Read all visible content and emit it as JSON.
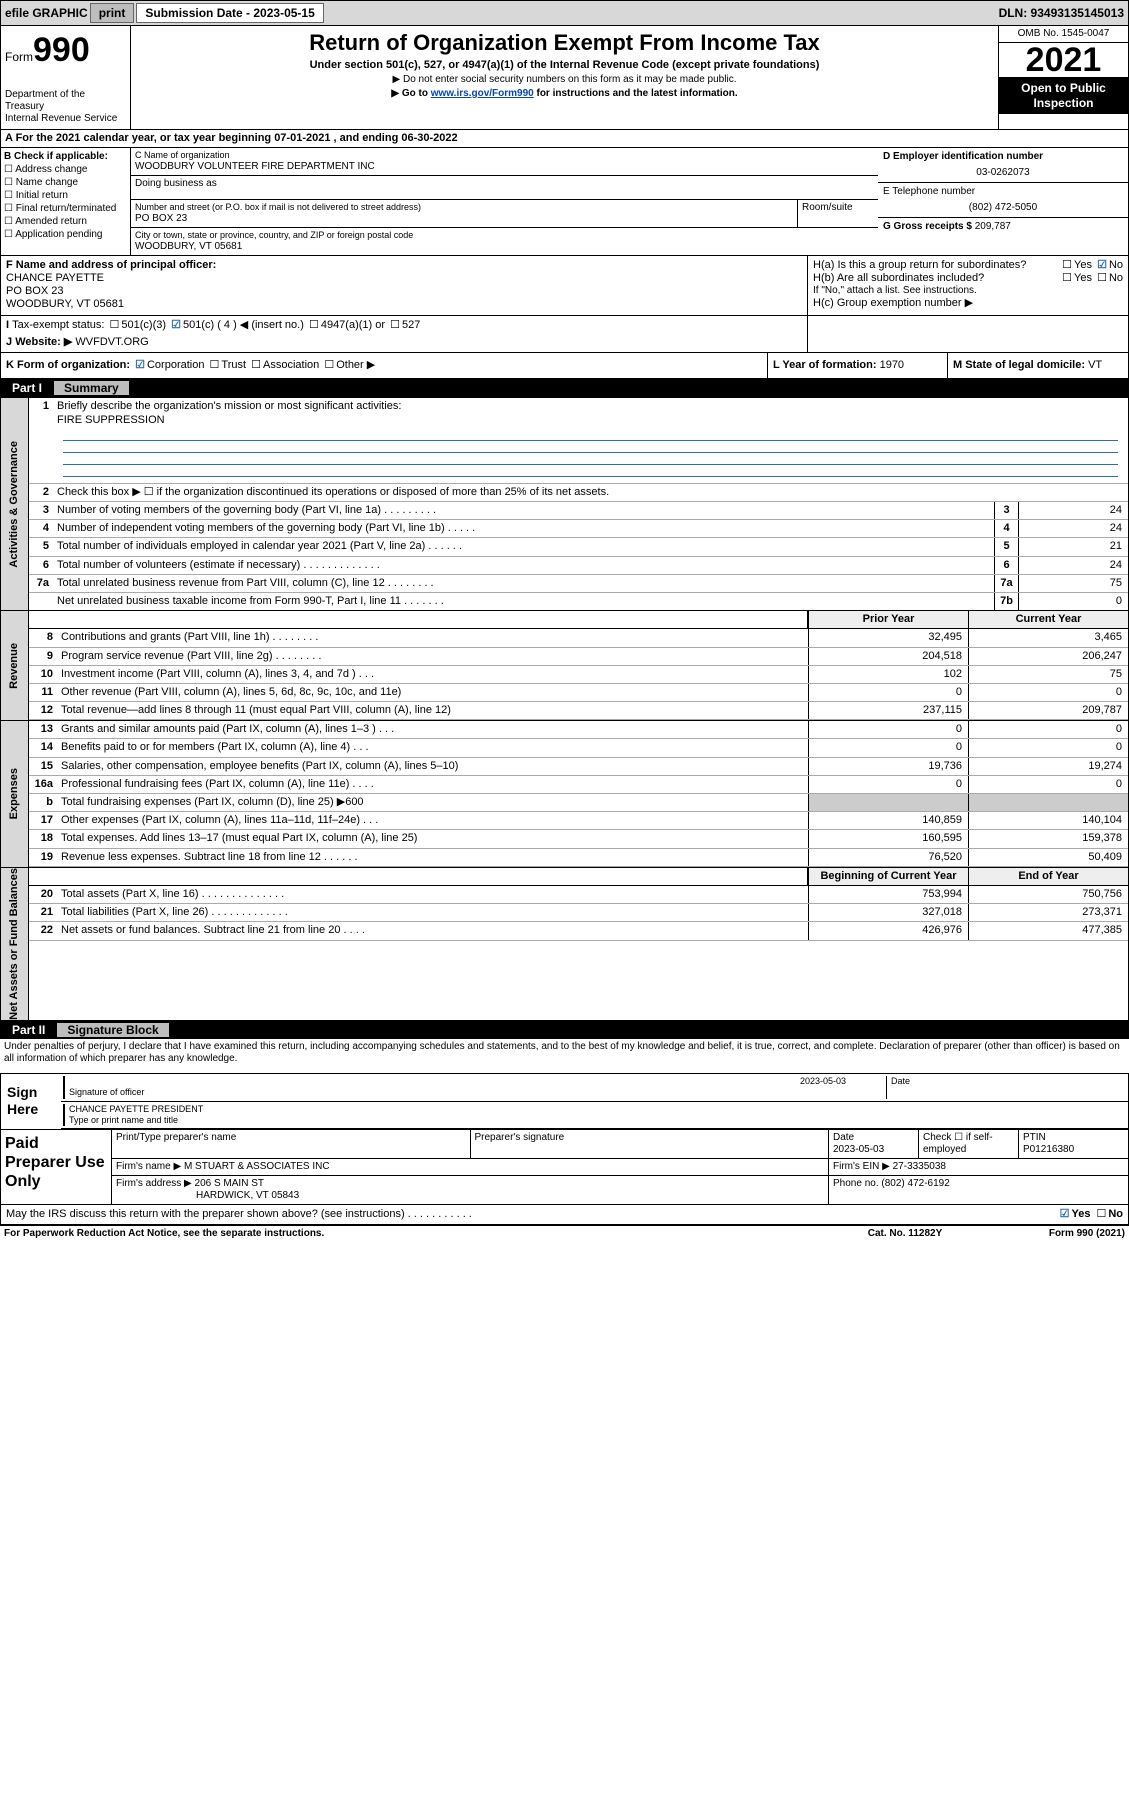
{
  "topbar": {
    "efile": "efile GRAPHIC",
    "print": "print",
    "sub_label": "Submission Date - 2023-05-15",
    "dln": "DLN: 93493135145013"
  },
  "header": {
    "form": "Form",
    "num": "990",
    "dept": "Department of the Treasury",
    "irs": "Internal Revenue Service",
    "title": "Return of Organization Exempt From Income Tax",
    "sub": "Under section 501(c), 527, or 4947(a)(1) of the Internal Revenue Code (except private foundations)",
    "l1": "▶ Do not enter social security numbers on this form as it may be made public.",
    "l2a": "▶ Go to ",
    "l2link": "www.irs.gov/Form990",
    "l2b": " for instructions and the latest information.",
    "omb": "OMB No. 1545-0047",
    "year": "2021",
    "otp": "Open to Public Inspection"
  },
  "period": {
    "text": "A For the 2021 calendar year, or tax year beginning 07-01-2021   , and ending 06-30-2022"
  },
  "entity": {
    "B_label": "B Check if applicable:",
    "B_opts": [
      "Address change",
      "Name change",
      "Initial return",
      "Final return/terminated",
      "Amended return",
      "Application pending"
    ],
    "C_label": "C Name of organization",
    "C_name": "WOODBURY VOLUNTEER FIRE DEPARTMENT INC",
    "dba": "Doing business as",
    "street_label": "Number and street (or P.O. box if mail is not delivered to street address)",
    "street": "PO BOX 23",
    "suite": "Room/suite",
    "city_label": "City or town, state or province, country, and ZIP or foreign postal code",
    "city": "WOODBURY, VT  05681",
    "D_label": "D Employer identification number",
    "D_val": "03-0262073",
    "E_label": "E Telephone number",
    "E_val": "(802) 472-5050",
    "G_label": "G Gross receipts $",
    "G_val": "209,787",
    "F_label": "F  Name and address of principal officer:",
    "F_name": "CHANCE PAYETTE",
    "F_addr1": "PO BOX 23",
    "F_addr2": "WOODBURY, VT  05681",
    "Ha": "H(a)  Is this a group return for subordinates?",
    "Hb": "H(b)  Are all subordinates included?",
    "Hnote": "If \"No,\" attach a list. See instructions.",
    "Hc": "H(c)  Group exemption number ▶",
    "I_label": "Tax-exempt status:",
    "I_501c3": "501(c)(3)",
    "I_501c": "501(c) ( 4 ) ◀ (insert no.)",
    "I_4947": "4947(a)(1) or",
    "I_527": "527",
    "J_label": "Website: ▶",
    "J_val": "WVFDVT.ORG",
    "K_label": "K Form of organization:",
    "K_corp": "Corporation",
    "K_trust": "Trust",
    "K_assoc": "Association",
    "K_other": "Other ▶",
    "L_label": "L Year of formation:",
    "L_val": "1970",
    "M_label": "M State of legal domicile:",
    "M_val": "VT"
  },
  "part1": {
    "hdr": "Part I",
    "title": "Summary",
    "q1": "Briefly describe the organization's mission or most significant activities:",
    "q1v": "FIRE SUPPRESSION",
    "q2": "Check this box ▶ ☐  if the organization discontinued its operations or disposed of more than 25% of its net assets.",
    "rows_gov": [
      {
        "n": "3",
        "d": "Number of voting members of the governing body (Part VI, line 1a)   .   .   .   .   .   .   .   .   .",
        "b": "3",
        "v": "24"
      },
      {
        "n": "4",
        "d": "Number of independent voting members of the governing body (Part VI, line 1b)   .   .   .   .   .",
        "b": "4",
        "v": "24"
      },
      {
        "n": "5",
        "d": "Total number of individuals employed in calendar year 2021 (Part V, line 2a)   .   .   .   .   .   .",
        "b": "5",
        "v": "21"
      },
      {
        "n": "6",
        "d": "Total number of volunteers (estimate if necessary)   .   .   .   .   .   .   .   .   .   .   .   .   .",
        "b": "6",
        "v": "24"
      },
      {
        "n": "7a",
        "d": "Total unrelated business revenue from Part VIII, column (C), line 12   .   .   .   .   .   .   .   .",
        "b": "7a",
        "v": "75"
      },
      {
        "n": "",
        "d": "Net unrelated business taxable income from Form 990-T, Part I, line 11   .   .   .   .   .   .   .",
        "b": "7b",
        "v": "0"
      }
    ],
    "col_prior": "Prior Year",
    "col_curr": "Current Year",
    "col_beg": "Beginning of Current Year",
    "col_end": "End of Year",
    "rev": [
      {
        "n": "8",
        "d": "Contributions and grants (Part VIII, line 1h)   .   .   .   .   .   .   .   .",
        "p": "32,495",
        "c": "3,465"
      },
      {
        "n": "9",
        "d": "Program service revenue (Part VIII, line 2g)   .   .   .   .   .   .   .   .",
        "p": "204,518",
        "c": "206,247"
      },
      {
        "n": "10",
        "d": "Investment income (Part VIII, column (A), lines 3, 4, and 7d )   .   .   .",
        "p": "102",
        "c": "75"
      },
      {
        "n": "11",
        "d": "Other revenue (Part VIII, column (A), lines 5, 6d, 8c, 9c, 10c, and 11e)",
        "p": "0",
        "c": "0"
      },
      {
        "n": "12",
        "d": "Total revenue—add lines 8 through 11 (must equal Part VIII, column (A), line 12)",
        "p": "237,115",
        "c": "209,787"
      }
    ],
    "exp": [
      {
        "n": "13",
        "d": "Grants and similar amounts paid (Part IX, column (A), lines 1–3 )   .   .   .",
        "p": "0",
        "c": "0"
      },
      {
        "n": "14",
        "d": "Benefits paid to or for members (Part IX, column (A), line 4)   .   .   .",
        "p": "0",
        "c": "0"
      },
      {
        "n": "15",
        "d": "Salaries, other compensation, employee benefits (Part IX, column (A), lines 5–10)",
        "p": "19,736",
        "c": "19,274"
      },
      {
        "n": "16a",
        "d": "Professional fundraising fees (Part IX, column (A), line 11e)   .   .   .   .",
        "p": "0",
        "c": "0"
      },
      {
        "n": "b",
        "d": "Total fundraising expenses (Part IX, column (D), line 25) ▶600",
        "p": "",
        "c": "",
        "shade": true
      },
      {
        "n": "17",
        "d": "Other expenses (Part IX, column (A), lines 11a–11d, 11f–24e)   .   .   .",
        "p": "140,859",
        "c": "140,104"
      },
      {
        "n": "18",
        "d": "Total expenses. Add lines 13–17 (must equal Part IX, column (A), line 25)",
        "p": "160,595",
        "c": "159,378"
      },
      {
        "n": "19",
        "d": "Revenue less expenses. Subtract line 18 from line 12   .   .   .   .   .   .",
        "p": "76,520",
        "c": "50,409"
      }
    ],
    "net": [
      {
        "n": "20",
        "d": "Total assets (Part X, line 16)   .   .   .   .   .   .   .   .   .   .   .   .   .   .",
        "p": "753,994",
        "c": "750,756"
      },
      {
        "n": "21",
        "d": "Total liabilities (Part X, line 26)   .   .   .   .   .   .   .   .   .   .   .   .   .",
        "p": "327,018",
        "c": "273,371"
      },
      {
        "n": "22",
        "d": "Net assets or fund balances. Subtract line 21 from line 20   .   .   .   .",
        "p": "426,976",
        "c": "477,385"
      }
    ],
    "vlabels": {
      "gov": "Activities & Governance",
      "rev": "Revenue",
      "exp": "Expenses",
      "net": "Net Assets or Fund Balances"
    }
  },
  "part2": {
    "hdr": "Part II",
    "title": "Signature Block",
    "decl": "Under penalties of perjury, I declare that I have examined this return, including accompanying schedules and statements, and to the best of my knowledge and belief, it is true, correct, and complete. Declaration of preparer (other than officer) is based on all information of which preparer has any knowledge.",
    "sign_here": "Sign Here",
    "sig_officer": "Signature of officer",
    "sig_date": "Date",
    "sig_dateval": "2023-05-03",
    "officer_name": "CHANCE PAYETTE PRESIDENT",
    "typename": "Type or print name and title",
    "paid": "Paid Preparer Use Only",
    "p_name": "Print/Type preparer's name",
    "p_sig": "Preparer's signature",
    "p_date": "Date",
    "p_dateval": "2023-05-03",
    "p_check": "Check ☐ if self-employed",
    "p_ptin": "PTIN",
    "p_ptinval": "P01216380",
    "firm_name": "Firm's name    ▶",
    "firm_nameval": "M STUART & ASSOCIATES INC",
    "firm_ein": "Firm's EIN ▶",
    "firm_einval": "27-3335038",
    "firm_addr": "Firm's address ▶",
    "firm_addrval": "206 S MAIN ST",
    "firm_addrval2": "HARDWICK, VT  05843",
    "phone": "Phone no.",
    "phoneval": "(802) 472-6192",
    "discuss": "May the IRS discuss this return with the preparer shown above? (see instructions)   .   .   .   .   .   .   .   .   .   .   .",
    "yes": "Yes",
    "no": "No"
  },
  "footer": {
    "pra": "For Paperwork Reduction Act Notice, see the separate instructions.",
    "cat": "Cat. No. 11282Y",
    "form": "Form 990 (2021)"
  }
}
